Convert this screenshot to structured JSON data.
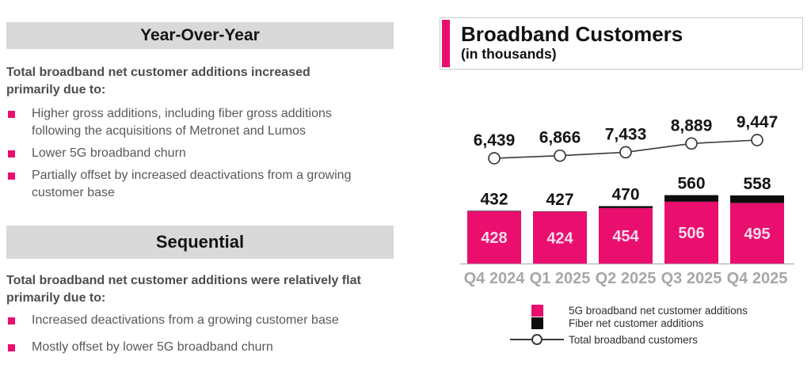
{
  "left_panel": {
    "yoy": {
      "title": "Year-Over-Year",
      "intro": "Total broadband net customer additions increased primarily due to:",
      "bullets": [
        "Higher gross additions, including fiber gross additions following the acquisitions of Metronet and Lumos",
        "Lower 5G broadband churn",
        "Partially offset by increased deactivations from a growing customer base"
      ]
    },
    "sequential": {
      "title": "Sequential",
      "intro": "Total broadband net customer additions were relatively flat primarily due to:",
      "bullets": [
        "Increased deactivations from a growing customer base",
        "Mostly offset by lower 5G broadband churn"
      ]
    }
  },
  "chart_data": {
    "type": "bar",
    "stacked": true,
    "title": "Broadband Customers",
    "subtitle": "(in thousands)",
    "categories": [
      "Q4 2024",
      "Q1 2025",
      "Q2 2025",
      "Q3 2025",
      "Q4 2025"
    ],
    "totals": [
      432,
      427,
      470,
      560,
      558
    ],
    "series": [
      {
        "name": "5G broadband net customer additions",
        "type": "bar",
        "color": "#EA0E6F",
        "values": [
          428,
          424,
          454,
          506,
          495
        ],
        "labels": [
          "428",
          "424",
          "454",
          "506",
          "495"
        ]
      },
      {
        "name": "Fiber net customer additions",
        "type": "bar",
        "color": "#0D0D0D",
        "values": [
          4,
          3,
          16,
          54,
          63
        ]
      },
      {
        "name": "Total broadband customers",
        "type": "line",
        "color": "#3A3A3A",
        "values": [
          6439,
          6866,
          7433,
          8889,
          9447
        ],
        "labels": [
          "6,439",
          "6,866",
          "7,433",
          "8,889",
          "9,447"
        ]
      }
    ],
    "bar_total_labels": [
      "432",
      "427",
      "470",
      "560",
      "558"
    ],
    "legend_position": "bottom",
    "grid": false
  },
  "colors": {
    "magenta": "#EA0E6F",
    "fiber_black": "#0D0D0D",
    "header_bg": "#D9D9D9",
    "body_text": "#58595B",
    "axis_label": "#A7A7A8",
    "line_stroke": "#3A3A3A",
    "bar_value_label": "#F7DCE9"
  }
}
